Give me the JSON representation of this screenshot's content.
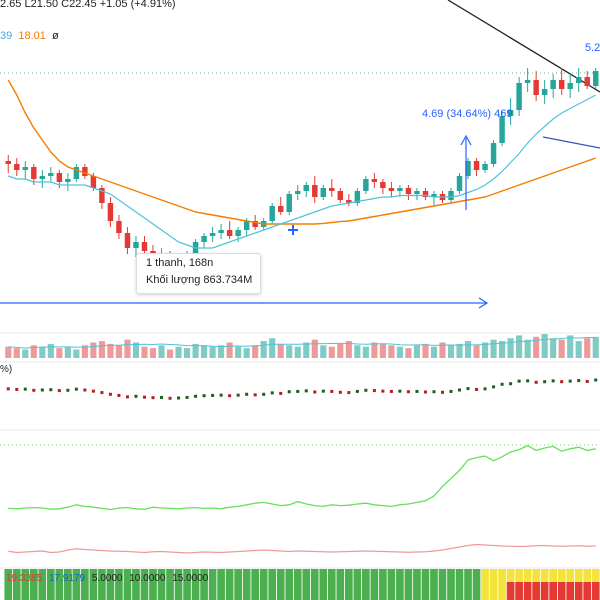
{
  "header": {
    "ohlc": "2.65   L21.50   C22.45   +1.05 (+4.91%)",
    "ma_values": [
      "39",
      "18.01",
      "ø"
    ]
  },
  "annotations": {
    "range_label": "4.69 (34.64%) 469",
    "right_label": "5.2",
    "tooltip_line1": "1 thanh, 168n",
    "tooltip_line2": "Khối lượng 863.734M"
  },
  "panes": {
    "pane2_label": "%)",
    "bottom_values": [
      "19.3385",
      "17.9179",
      "5.0000",
      "10.0000",
      "15.0000"
    ]
  },
  "colors": {
    "up": "#26a69a",
    "down": "#e53935",
    "ma_fast": "#4fc3d9",
    "ma_slow": "#f57c00",
    "green_line": "#66e05a",
    "red_line": "#ef9a9a",
    "arrow": "#2962ff"
  },
  "chart_data": {
    "type": "candlestick",
    "price_range": [
      15.5,
      25.5
    ],
    "candles": [
      [
        20.8,
        21.0,
        20.4,
        20.7
      ],
      [
        20.7,
        20.9,
        20.3,
        20.5
      ],
      [
        20.5,
        20.8,
        20.2,
        20.6
      ],
      [
        20.6,
        20.7,
        20.0,
        20.2
      ],
      [
        20.2,
        20.5,
        19.9,
        20.3
      ],
      [
        20.3,
        20.6,
        20.1,
        20.4
      ],
      [
        20.4,
        20.5,
        19.9,
        20.1
      ],
      [
        20.1,
        20.4,
        19.8,
        20.2
      ],
      [
        20.2,
        20.7,
        20.1,
        20.6
      ],
      [
        20.6,
        20.7,
        20.2,
        20.3
      ],
      [
        20.3,
        20.4,
        19.8,
        19.9
      ],
      [
        19.9,
        20.0,
        19.2,
        19.4
      ],
      [
        19.4,
        19.6,
        18.6,
        18.8
      ],
      [
        18.8,
        19.0,
        18.2,
        18.4
      ],
      [
        18.4,
        18.6,
        17.7,
        17.9
      ],
      [
        17.9,
        18.3,
        17.6,
        18.1
      ],
      [
        18.1,
        18.3,
        17.7,
        17.8
      ],
      [
        17.8,
        18.0,
        17.4,
        17.6
      ],
      [
        17.6,
        17.9,
        17.3,
        17.7
      ],
      [
        17.7,
        17.8,
        17.3,
        17.4
      ],
      [
        17.4,
        17.7,
        17.2,
        17.5
      ],
      [
        17.5,
        17.8,
        17.3,
        17.7
      ],
      [
        17.7,
        18.2,
        17.6,
        18.1
      ],
      [
        18.1,
        18.4,
        17.9,
        18.3
      ],
      [
        18.3,
        18.6,
        18.1,
        18.4
      ],
      [
        18.4,
        18.7,
        18.2,
        18.5
      ],
      [
        18.5,
        18.8,
        18.2,
        18.3
      ],
      [
        18.3,
        18.6,
        18.1,
        18.5
      ],
      [
        18.5,
        18.9,
        18.3,
        18.8
      ],
      [
        18.8,
        19.0,
        18.5,
        18.6
      ],
      [
        18.6,
        18.9,
        18.5,
        18.8
      ],
      [
        18.8,
        19.4,
        18.7,
        19.3
      ],
      [
        19.3,
        19.6,
        19.0,
        19.1
      ],
      [
        19.1,
        19.8,
        19.0,
        19.7
      ],
      [
        19.7,
        20.0,
        19.5,
        19.8
      ],
      [
        19.8,
        20.1,
        19.6,
        20.0
      ],
      [
        20.0,
        20.3,
        19.4,
        19.6
      ],
      [
        19.6,
        20.0,
        19.5,
        19.9
      ],
      [
        19.9,
        20.2,
        19.6,
        19.8
      ],
      [
        19.8,
        19.9,
        19.4,
        19.5
      ],
      [
        19.5,
        19.7,
        19.3,
        19.4
      ],
      [
        19.4,
        19.9,
        19.3,
        19.8
      ],
      [
        19.8,
        20.3,
        19.7,
        20.2
      ],
      [
        20.2,
        20.4,
        19.9,
        20.1
      ],
      [
        20.1,
        20.2,
        19.7,
        19.9
      ],
      [
        19.9,
        20.1,
        19.6,
        19.8
      ],
      [
        19.8,
        20.0,
        19.6,
        19.9
      ],
      [
        19.9,
        20.0,
        19.5,
        19.7
      ],
      [
        19.7,
        19.9,
        19.5,
        19.8
      ],
      [
        19.8,
        19.9,
        19.5,
        19.6
      ],
      [
        19.6,
        19.8,
        19.3,
        19.7
      ],
      [
        19.7,
        19.8,
        19.4,
        19.5
      ],
      [
        19.5,
        19.9,
        19.4,
        19.8
      ],
      [
        19.8,
        20.4,
        19.7,
        20.3
      ],
      [
        20.3,
        20.9,
        20.2,
        20.8
      ],
      [
        20.8,
        20.9,
        20.3,
        20.5
      ],
      [
        20.5,
        20.8,
        20.4,
        20.7
      ],
      [
        20.7,
        21.5,
        20.6,
        21.4
      ],
      [
        21.4,
        22.5,
        21.3,
        22.3
      ],
      [
        22.3,
        22.9,
        22.0,
        22.5
      ],
      [
        22.5,
        23.6,
        22.3,
        23.4
      ],
      [
        23.4,
        23.9,
        23.1,
        23.5
      ],
      [
        23.5,
        23.8,
        22.8,
        23.0
      ],
      [
        23.0,
        23.5,
        22.7,
        23.2
      ],
      [
        23.2,
        23.7,
        22.9,
        23.5
      ],
      [
        23.5,
        23.9,
        23.0,
        23.2
      ],
      [
        23.2,
        23.7,
        22.9,
        23.4
      ],
      [
        23.4,
        23.9,
        23.1,
        23.6
      ],
      [
        23.6,
        23.8,
        23.2,
        23.3
      ],
      [
        23.3,
        23.9,
        23.2,
        23.8
      ]
    ],
    "ma_fast": [
      20.3,
      20.2,
      20.2,
      20.1,
      20.1,
      20.1,
      20.0,
      20.0,
      20.0,
      20.0,
      19.9,
      19.8,
      19.7,
      19.5,
      19.3,
      19.1,
      18.9,
      18.7,
      18.5,
      18.3,
      18.1,
      18.0,
      17.9,
      17.9,
      17.9,
      18.0,
      18.1,
      18.2,
      18.3,
      18.4,
      18.5,
      18.6,
      18.7,
      18.8,
      18.9,
      19.0,
      19.1,
      19.2,
      19.3,
      19.35,
      19.4,
      19.45,
      19.5,
      19.55,
      19.6,
      19.6,
      19.65,
      19.65,
      19.65,
      19.65,
      19.6,
      19.6,
      19.6,
      19.65,
      19.75,
      19.85,
      20.0,
      20.2,
      20.45,
      20.75,
      21.05,
      21.4,
      21.7,
      21.95,
      22.2,
      22.4,
      22.55,
      22.7,
      22.85,
      23.0
    ],
    "ma_slow": [
      23.5,
      23.0,
      22.4,
      21.9,
      21.5,
      21.1,
      20.8,
      20.6,
      20.5,
      20.4,
      20.3,
      20.2,
      20.1,
      20.0,
      19.9,
      19.8,
      19.7,
      19.6,
      19.5,
      19.4,
      19.3,
      19.2,
      19.1,
      19.05,
      19.0,
      18.95,
      18.9,
      18.85,
      18.8,
      18.75,
      18.7,
      18.7,
      18.7,
      18.7,
      18.7,
      18.7,
      18.7,
      18.72,
      18.75,
      18.78,
      18.8,
      18.85,
      18.9,
      18.95,
      19.0,
      19.05,
      19.1,
      19.15,
      19.2,
      19.25,
      19.3,
      19.35,
      19.4,
      19.45,
      19.5,
      19.55,
      19.6,
      19.7,
      19.8,
      19.9,
      20.0,
      20.1,
      20.2,
      20.3,
      20.4,
      20.5,
      20.6,
      20.7,
      20.8,
      20.9
    ],
    "volumes": [
      8,
      7,
      6,
      9,
      8,
      10,
      7,
      8,
      6,
      9,
      11,
      12,
      10,
      9,
      13,
      11,
      8,
      7,
      9,
      6,
      8,
      7,
      10,
      9,
      8,
      9,
      11,
      8,
      7,
      9,
      12,
      14,
      10,
      9,
      8,
      11,
      13,
      9,
      8,
      10,
      12,
      9,
      8,
      11,
      10,
      9,
      8,
      7,
      9,
      10,
      8,
      11,
      9,
      10,
      12,
      9,
      11,
      13,
      12,
      14,
      16,
      13,
      15,
      17,
      14,
      13,
      16,
      12,
      14,
      15
    ],
    "osc_line": [
      0.45,
      0.4,
      0.5,
      0.55,
      0.5,
      0.35,
      0.4,
      0.6,
      0.9,
      0.7,
      0.6,
      0.45,
      0.3,
      0.5,
      0.55,
      0.4,
      0.35,
      0.6,
      0.5,
      0.45,
      0.4,
      0.5,
      0.55,
      0.45,
      0.5,
      0.4,
      0.6,
      0.7,
      0.9,
      1.1,
      1.2,
      1.0,
      0.8,
      0.9,
      1.3,
      1.0,
      0.8,
      0.7,
      0.9,
      0.8,
      0.85,
      1.0,
      1.1,
      0.9,
      0.8,
      0.7,
      0.9,
      1.0,
      1.2,
      1.4,
      2.0,
      3.2,
      4.2,
      5.2,
      6.5,
      6.8,
      7.0,
      6.4,
      6.9,
      7.5,
      7.8,
      8.3,
      7.7,
      8.0,
      8.2,
      7.6,
      7.9,
      8.1,
      7.7,
      7.9
    ],
    "osc_red": [
      0.35,
      0.3,
      0.32,
      0.34,
      0.36,
      0.3,
      0.32,
      0.4,
      0.45,
      0.42,
      0.4,
      0.38,
      0.36,
      0.35,
      0.34,
      0.32,
      0.3,
      0.33,
      0.34,
      0.32,
      0.3,
      0.28,
      0.3,
      0.32,
      0.31,
      0.3,
      0.32,
      0.34,
      0.36,
      0.38,
      0.4,
      0.38,
      0.36,
      0.34,
      0.36,
      0.35,
      0.34,
      0.33,
      0.32,
      0.33,
      0.34,
      0.35,
      0.36,
      0.35,
      0.34,
      0.33,
      0.32,
      0.31,
      0.32,
      0.33,
      0.36,
      0.4,
      0.46,
      0.52,
      0.58,
      0.62,
      0.6,
      0.58,
      0.56,
      0.55,
      0.54,
      0.55,
      0.57,
      0.58,
      0.56,
      0.55,
      0.56,
      0.57,
      0.55,
      0.56
    ]
  }
}
